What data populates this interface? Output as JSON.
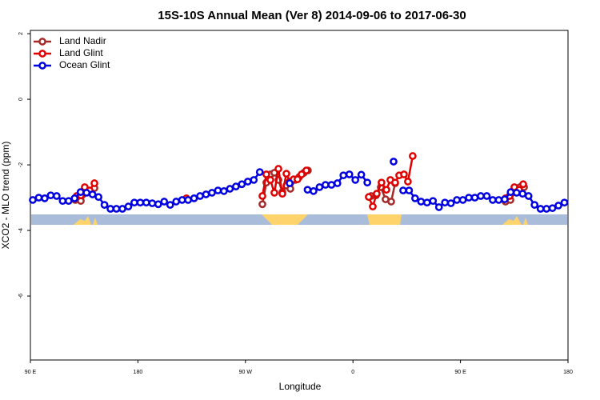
{
  "chart_data": {
    "type": "line",
    "title": "15S-10S Annual Mean (Ver 8)   2014-09-06 to 2017-06-30",
    "xlabel": "Longitude",
    "ylabel": "XCO2 - MLO trend (ppm)",
    "xlim": [
      90,
      540
    ],
    "xticks": [
      {
        "value": 90,
        "label": "90 E"
      },
      {
        "value": 180,
        "label": "180"
      },
      {
        "value": 270,
        "label": "90 W"
      },
      {
        "value": 360,
        "label": "0"
      },
      {
        "value": 450,
        "label": "90 E"
      },
      {
        "value": 540,
        "label": "180"
      }
    ],
    "ylim": [
      -7.95,
      2.1
    ],
    "yticks": [
      2,
      0,
      -2,
      -4,
      -6
    ],
    "legend": "top-left",
    "series": [
      {
        "name": "Land Nadir",
        "color": "#a52a2a",
        "x": [
          127.5,
          132.2,
          139.6,
          143.6,
          null,
          284.2,
          287.5,
          290.9,
          294.2,
          297.6,
          300.9,
          304.3,
          307.6,
          311.6,
          315,
          319,
          322.3,
          null,
          375.2,
          379.3,
          383.3,
          387.3,
          392,
          395.3,
          null,
          487.7,
          491.8,
          495.8,
          499.8,
          503.2
        ],
        "values": [
          -3.07,
          -3.1,
          -2.78,
          -2.71,
          null,
          -3.2,
          -2.54,
          -2.29,
          -2.24,
          -2.46,
          -2.83,
          -2.63,
          -2.73,
          -2.46,
          -2.37,
          -2.24,
          -2.17,
          null,
          -2.95,
          -2.93,
          -2.68,
          -3.05,
          -3.12,
          -2.56,
          null,
          -3.12,
          -3.07,
          -2.83,
          -2.68,
          -2.68
        ]
      },
      {
        "name": "Land Glint",
        "color": "#e00000",
        "x": [
          128.8,
          132.2,
          135.5,
          139.6,
          143.6,
          null,
          220.6,
          null,
          284.2,
          287.5,
          290.9,
          294.2,
          297.6,
          300.9,
          304.3,
          307,
          310.3,
          313.6,
          317,
          321,
          null,
          373.2,
          376.6,
          379.9,
          383.9,
          388,
          391.3,
          395.3,
          398.7,
          402.7,
          406,
          410,
          null,
          487.7,
          491.1,
          495.1,
          499.1,
          502.5
        ],
        "values": [
          -2.95,
          -2.93,
          -2.68,
          -2.78,
          -2.56,
          null,
          -3.02,
          null,
          -2.95,
          -2.29,
          -2.46,
          -2.85,
          -2.12,
          -2.88,
          -2.27,
          -2.51,
          -2.44,
          -2.44,
          -2.29,
          -2.17,
          null,
          -2.98,
          -3.27,
          -2.88,
          -2.54,
          -2.76,
          -2.46,
          -2.54,
          -2.32,
          -2.29,
          -2.51,
          -1.73,
          null,
          -3.02,
          -2.95,
          -2.68,
          -2.76,
          -2.59
        ]
      },
      {
        "name": "Ocean Glint",
        "color": "#0000e0",
        "x": [
          92,
          97,
          102,
          107,
          112,
          117,
          122,
          127,
          132,
          137,
          142,
          147,
          152,
          157,
          162,
          167,
          172,
          177,
          182,
          187,
          192,
          197,
          202,
          207,
          212,
          217,
          222,
          227,
          232,
          237,
          242,
          247,
          252,
          257,
          262,
          267,
          272,
          277,
          282,
          null,
          307,
          null,
          322,
          327,
          332,
          337,
          342,
          347,
          352,
          357,
          362,
          367,
          372,
          null,
          394,
          null,
          402,
          407,
          412,
          417,
          422,
          427,
          432,
          437,
          442,
          447,
          452,
          457,
          462,
          467,
          472,
          477,
          482,
          487,
          492,
          497,
          502,
          507,
          512,
          517,
          522,
          527,
          532,
          537
        ],
        "values": [
          -3.07,
          -3.0,
          -3.02,
          -2.93,
          -2.95,
          -3.1,
          -3.1,
          -3.02,
          -2.83,
          -2.85,
          -2.9,
          -2.98,
          -3.22,
          -3.34,
          -3.34,
          -3.34,
          -3.27,
          -3.15,
          -3.15,
          -3.15,
          -3.17,
          -3.2,
          -3.12,
          -3.22,
          -3.12,
          -3.07,
          -3.07,
          -3.02,
          -2.95,
          -2.9,
          -2.85,
          -2.78,
          -2.8,
          -2.73,
          -2.66,
          -2.59,
          -2.51,
          -2.46,
          -2.22,
          null,
          -2.56,
          null,
          -2.76,
          -2.8,
          -2.68,
          -2.61,
          -2.61,
          -2.56,
          -2.32,
          -2.29,
          -2.46,
          -2.3,
          -2.54,
          null,
          -1.9,
          null,
          -2.78,
          -2.78,
          -3.02,
          -3.12,
          -3.15,
          -3.1,
          -3.29,
          -3.15,
          -3.17,
          -3.07,
          -3.07,
          -3.0,
          -3.0,
          -2.95,
          -2.95,
          -3.07,
          -3.07,
          -3.05,
          -2.83,
          -2.85,
          -2.88,
          -2.95,
          -3.22,
          -3.34,
          -3.34,
          -3.32,
          -3.24,
          -3.15
        ]
      }
    ]
  }
}
